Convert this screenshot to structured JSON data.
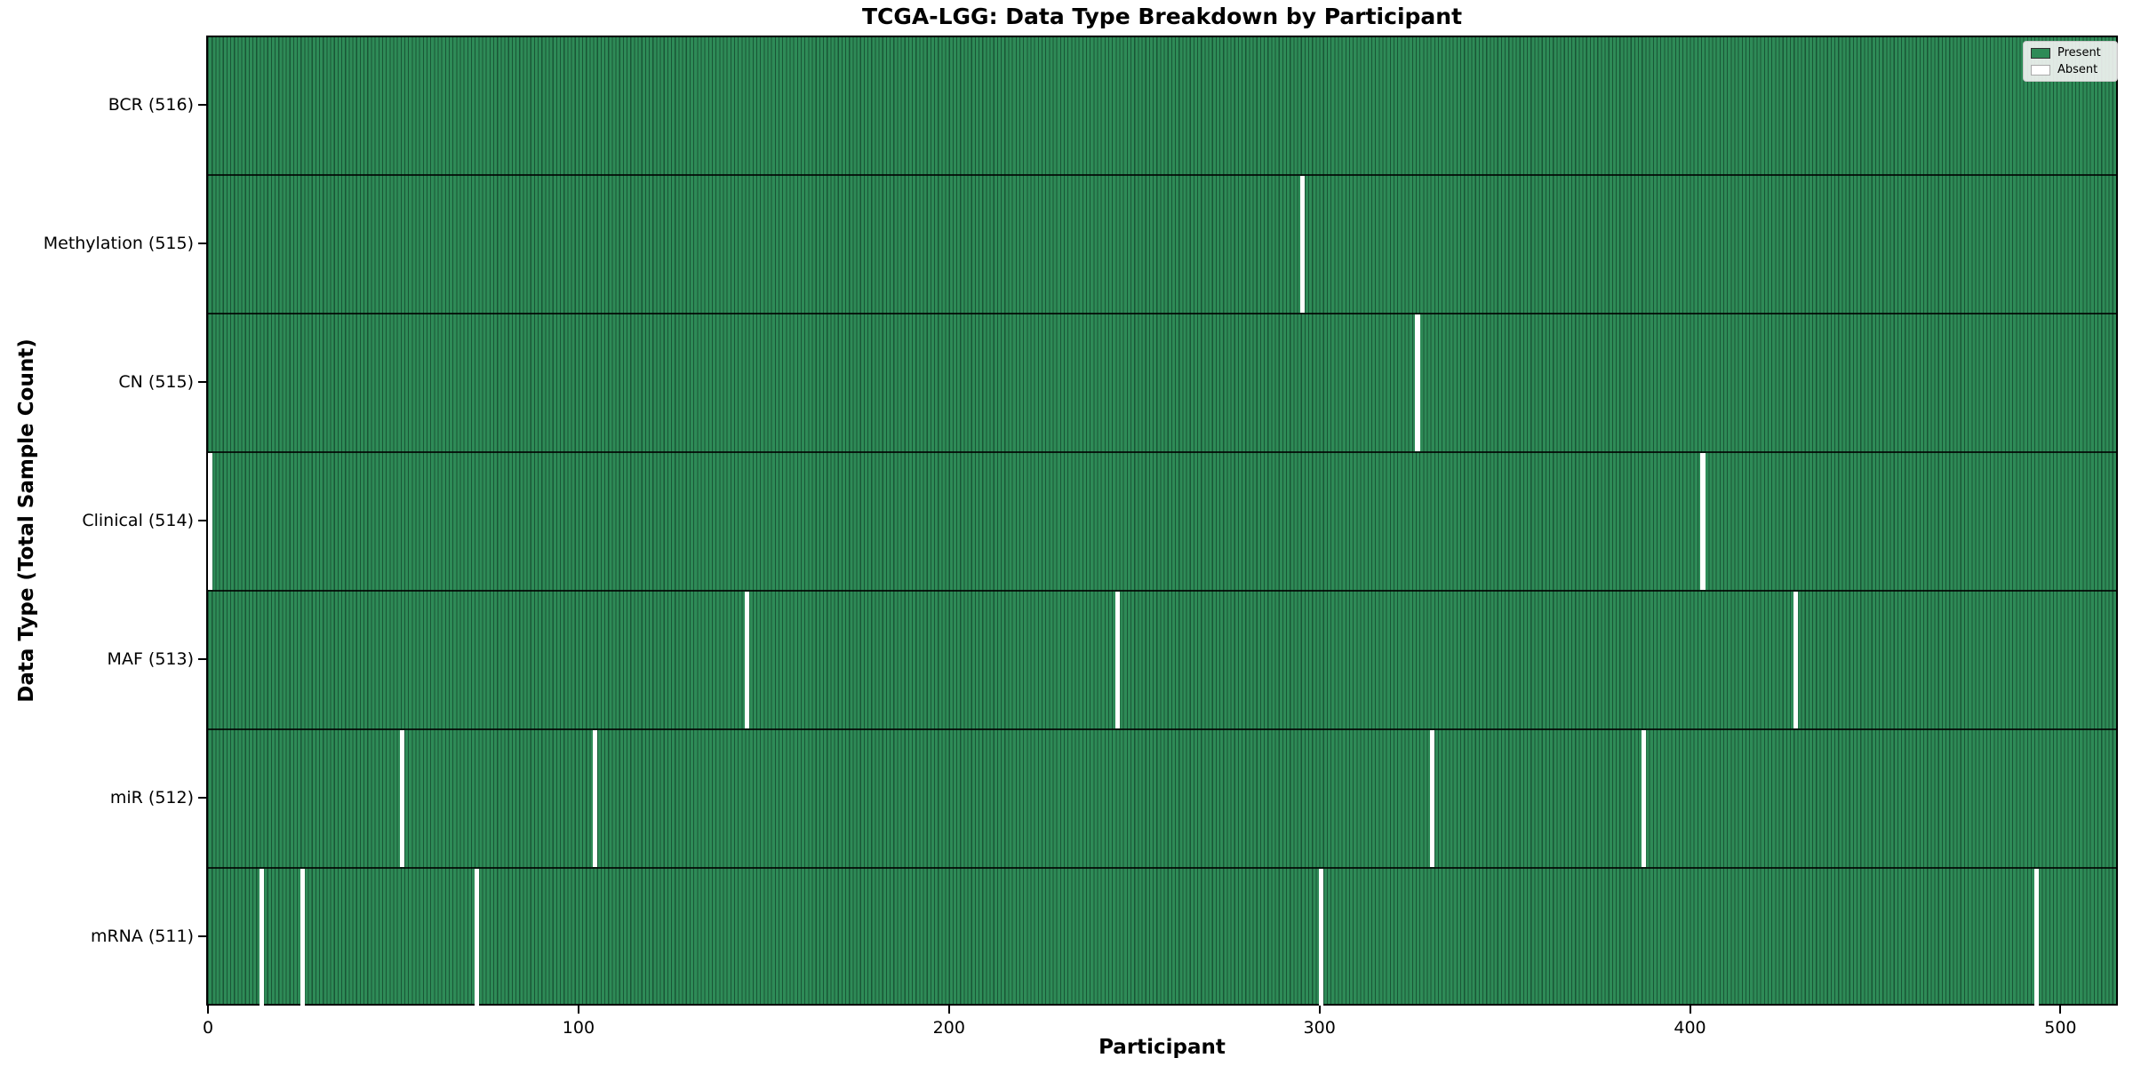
{
  "title": "TCGA-LGG: Data Type Breakdown by Participant",
  "colors": {
    "present": "#2e8b57",
    "absent": "#ffffff",
    "bar_edge": "#0a2a1a",
    "axis": "#000000",
    "legend_bg": "#f4f4f4"
  },
  "legend": {
    "position": "upper right",
    "items": [
      {
        "label": "Present",
        "color": "#2e8b57",
        "edge": "#2f2f2f"
      },
      {
        "label": "Absent",
        "color": "#ffffff",
        "edge": "#aaaaaa"
      }
    ]
  },
  "chart_data": {
    "type": "heatmap",
    "title": "TCGA-LGG: Data Type Breakdown by Participant",
    "xlabel": "Participant",
    "ylabel": "Data Type (Total Sample Count)",
    "n_participants": 516,
    "xlim": [
      -0.5,
      515.5
    ],
    "x_ticks": [
      0,
      100,
      200,
      300,
      400,
      500
    ],
    "grid": false,
    "legend_entries": [
      "Present",
      "Absent"
    ],
    "legend_position": "upper right",
    "rows": [
      {
        "data_type": "BCR",
        "label": "BCR (516)",
        "present_count": 516,
        "absent_participants": []
      },
      {
        "data_type": "Methylation",
        "label": "Methylation (515)",
        "present_count": 515,
        "absent_participants": [
          295
        ]
      },
      {
        "data_type": "CN",
        "label": "CN (515)",
        "present_count": 515,
        "absent_participants": [
          326
        ]
      },
      {
        "data_type": "Clinical",
        "label": "Clinical (514)",
        "present_count": 514,
        "absent_participants": [
          0,
          403
        ]
      },
      {
        "data_type": "MAF",
        "label": "MAF (513)",
        "present_count": 513,
        "absent_participants": [
          145,
          245,
          428
        ]
      },
      {
        "data_type": "miR",
        "label": "miR (512)",
        "present_count": 512,
        "absent_participants": [
          52,
          104,
          330,
          387
        ]
      },
      {
        "data_type": "mRNA",
        "label": "mRNA (511)",
        "present_count": 511,
        "absent_participants": [
          14,
          25,
          72,
          300,
          493
        ]
      }
    ]
  }
}
